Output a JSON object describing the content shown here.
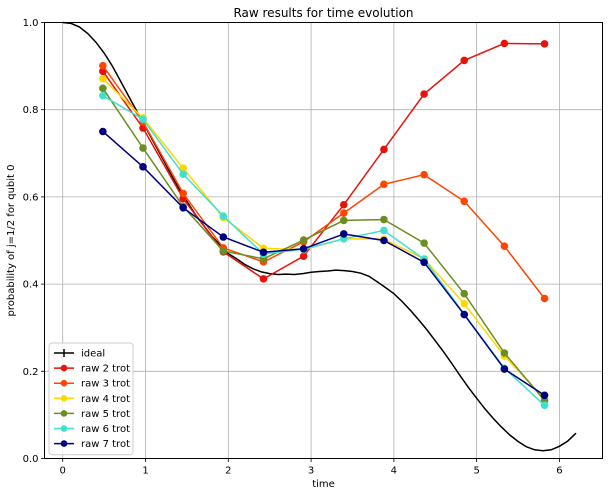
{
  "chart_data": {
    "type": "line",
    "title": "Raw results for time evolution",
    "xlabel": "time",
    "ylabel": "probability of j=1/2 for qubit 0",
    "xlim": [
      -0.22,
      6.52
    ],
    "ylim": [
      0.0,
      1.0
    ],
    "xticks": [
      0,
      1,
      2,
      3,
      4,
      5,
      6
    ],
    "yticks": [
      0.0,
      0.2,
      0.4,
      0.6,
      0.8,
      1.0
    ],
    "xtick_labels": [
      "0",
      "1",
      "2",
      "3",
      "4",
      "5",
      "6"
    ],
    "ytick_labels": [
      "0.0",
      "0.2",
      "0.4",
      "0.6",
      "0.8",
      "1.0"
    ],
    "grid": true,
    "legend_position": "lower-left",
    "x": [
      0.485,
      0.97,
      1.455,
      1.94,
      2.425,
      2.91,
      3.395,
      3.88,
      4.365,
      4.85,
      5.335,
      5.82
    ],
    "ideal": {
      "name": "ideal",
      "color": "#000000",
      "x": [
        0.0,
        0.1,
        0.2,
        0.3,
        0.4,
        0.5,
        0.6,
        0.7,
        0.8,
        0.9,
        1.0,
        1.1,
        1.2,
        1.3,
        1.4,
        1.5,
        1.6,
        1.7,
        1.8,
        1.9,
        2.0,
        2.1,
        2.2,
        2.3,
        2.4,
        2.5,
        2.6,
        2.7,
        2.8,
        2.9,
        3.0,
        3.1,
        3.2,
        3.3,
        3.4,
        3.5,
        3.6,
        3.7,
        3.8,
        3.9,
        4.0,
        4.1,
        4.2,
        4.3,
        4.4,
        4.5,
        4.6,
        4.7,
        4.8,
        4.9,
        5.0,
        5.1,
        5.2,
        5.3,
        5.4,
        5.5,
        5.6,
        5.7,
        5.8,
        5.9,
        6.0,
        6.1,
        6.2
      ],
      "y": [
        1.0,
        0.998,
        0.99,
        0.975,
        0.955,
        0.93,
        0.9,
        0.865,
        0.83,
        0.795,
        0.76,
        0.725,
        0.69,
        0.655,
        0.62,
        0.59,
        0.56,
        0.535,
        0.51,
        0.49,
        0.47,
        0.458,
        0.445,
        0.435,
        0.428,
        0.424,
        0.422,
        0.423,
        0.422,
        0.424,
        0.427,
        0.429,
        0.43,
        0.432,
        0.431,
        0.429,
        0.425,
        0.418,
        0.405,
        0.392,
        0.378,
        0.36,
        0.34,
        0.318,
        0.295,
        0.27,
        0.245,
        0.218,
        0.19,
        0.163,
        0.138,
        0.114,
        0.092,
        0.072,
        0.054,
        0.039,
        0.027,
        0.02,
        0.018,
        0.02,
        0.028,
        0.04,
        0.058
      ]
    },
    "series": [
      {
        "name": "raw 2 trot",
        "color": "#e8120c",
        "values": [
          0.888,
          0.758,
          0.596,
          0.474,
          0.412,
          0.464,
          0.582,
          0.709,
          0.836,
          0.913,
          0.952,
          0.951
        ]
      },
      {
        "name": "raw 3 trot",
        "color": "#ff4500",
        "values": [
          0.901,
          0.772,
          0.608,
          0.483,
          0.451,
          0.497,
          0.563,
          0.629,
          0.651,
          0.59,
          0.487,
          0.367
        ]
      },
      {
        "name": "raw 4 trot",
        "color": "#ffd700",
        "values": [
          0.871,
          0.781,
          0.666,
          0.553,
          0.482,
          0.479,
          0.504,
          0.503,
          0.458,
          0.355,
          0.235,
          0.137
        ]
      },
      {
        "name": "raw 5 trot",
        "color": "#6b8e23",
        "values": [
          0.849,
          0.712,
          0.578,
          0.476,
          0.458,
          0.501,
          0.546,
          0.548,
          0.494,
          0.378,
          0.242,
          0.133
        ]
      },
      {
        "name": "raw 6 trot",
        "color": "#40e0d0",
        "values": [
          0.832,
          0.778,
          0.652,
          0.556,
          0.469,
          0.48,
          0.504,
          0.523,
          0.457,
          0.331,
          0.207,
          0.122
        ]
      },
      {
        "name": "raw 7 trot",
        "color": "#000080",
        "values": [
          0.75,
          0.669,
          0.575,
          0.508,
          0.473,
          0.481,
          0.515,
          0.5,
          0.45,
          0.33,
          0.205,
          0.145
        ]
      }
    ]
  }
}
